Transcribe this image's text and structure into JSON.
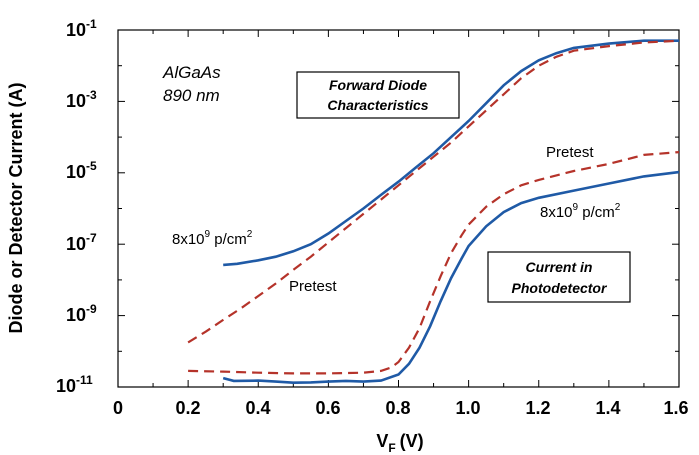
{
  "chart_data": {
    "type": "line",
    "title": "",
    "xlabel": "V",
    "xlabel_sub": "F",
    "xlabel_unit": "(V)",
    "ylabel": "Diode or Detector Current (A)",
    "xlim": [
      0,
      1.6
    ],
    "ylim_log10": [
      -11,
      -1
    ],
    "y_scale": "log",
    "x_ticks": [
      "0",
      "0.2",
      "0.4",
      "0.6",
      "0.8",
      "1.0",
      "1.2",
      "1.4",
      "1.6"
    ],
    "y_ticks": [
      {
        "base": "10",
        "exp": "-1"
      },
      {
        "base": "10",
        "exp": "-3"
      },
      {
        "base": "10",
        "exp": "-5"
      },
      {
        "base": "10",
        "exp": "-7"
      },
      {
        "base": "10",
        "exp": "-9"
      },
      {
        "base": "10",
        "exp": "-11"
      }
    ],
    "grid": false,
    "series": [
      {
        "name": "",
        "color": "#1f5aa6",
        "dash": "solid",
        "points_log10": [
          [
            0.3,
            -7.58
          ],
          [
            0.34,
            -7.55
          ],
          [
            0.4,
            -7.45
          ],
          [
            0.45,
            -7.35
          ],
          [
            0.5,
            -7.2
          ],
          [
            0.55,
            -7.0
          ],
          [
            0.6,
            -6.7
          ],
          [
            0.65,
            -6.35
          ],
          [
            0.7,
            -6.0
          ],
          [
            0.75,
            -5.62
          ],
          [
            0.8,
            -5.25
          ],
          [
            0.85,
            -4.85
          ],
          [
            0.9,
            -4.45
          ],
          [
            0.95,
            -4.0
          ],
          [
            1.0,
            -3.55
          ],
          [
            1.05,
            -3.05
          ],
          [
            1.1,
            -2.55
          ],
          [
            1.15,
            -2.15
          ],
          [
            1.2,
            -1.85
          ],
          [
            1.25,
            -1.65
          ],
          [
            1.3,
            -1.5
          ],
          [
            1.4,
            -1.38
          ],
          [
            1.5,
            -1.3
          ],
          [
            1.6,
            -1.3
          ]
        ]
      },
      {
        "name": "",
        "color": "#b5332a",
        "dash": "dashed",
        "points_log10": [
          [
            0.2,
            -9.75
          ],
          [
            0.25,
            -9.45
          ],
          [
            0.3,
            -9.12
          ],
          [
            0.35,
            -8.8
          ],
          [
            0.4,
            -8.45
          ],
          [
            0.45,
            -8.1
          ],
          [
            0.5,
            -7.72
          ],
          [
            0.55,
            -7.35
          ],
          [
            0.6,
            -6.95
          ],
          [
            0.65,
            -6.55
          ],
          [
            0.7,
            -6.15
          ],
          [
            0.75,
            -5.75
          ],
          [
            0.8,
            -5.35
          ],
          [
            0.85,
            -4.95
          ],
          [
            0.9,
            -4.55
          ],
          [
            0.95,
            -4.15
          ],
          [
            1.0,
            -3.7
          ],
          [
            1.05,
            -3.25
          ],
          [
            1.1,
            -2.8
          ],
          [
            1.15,
            -2.35
          ],
          [
            1.2,
            -2.0
          ],
          [
            1.25,
            -1.75
          ],
          [
            1.3,
            -1.58
          ],
          [
            1.4,
            -1.45
          ],
          [
            1.5,
            -1.35
          ],
          [
            1.6,
            -1.3
          ]
        ]
      },
      {
        "name": "",
        "color": "#b5332a",
        "dash": "dashed",
        "points_log10": [
          [
            0.2,
            -10.55
          ],
          [
            0.3,
            -10.57
          ],
          [
            0.4,
            -10.6
          ],
          [
            0.5,
            -10.62
          ],
          [
            0.6,
            -10.62
          ],
          [
            0.7,
            -10.6
          ],
          [
            0.75,
            -10.55
          ],
          [
            0.78,
            -10.45
          ],
          [
            0.8,
            -10.3
          ],
          [
            0.83,
            -9.9
          ],
          [
            0.86,
            -9.35
          ],
          [
            0.89,
            -8.6
          ],
          [
            0.92,
            -7.9
          ],
          [
            0.95,
            -7.25
          ],
          [
            0.98,
            -6.75
          ],
          [
            1.0,
            -6.45
          ],
          [
            1.05,
            -5.95
          ],
          [
            1.1,
            -5.6
          ],
          [
            1.15,
            -5.35
          ],
          [
            1.2,
            -5.2
          ],
          [
            1.3,
            -4.95
          ],
          [
            1.4,
            -4.75
          ],
          [
            1.5,
            -4.5
          ],
          [
            1.6,
            -4.42
          ]
        ]
      },
      {
        "name": "",
        "color": "#1f5aa6",
        "dash": "solid",
        "points_log10": [
          [
            0.3,
            -10.75
          ],
          [
            0.33,
            -10.83
          ],
          [
            0.4,
            -10.82
          ],
          [
            0.45,
            -10.85
          ],
          [
            0.5,
            -10.88
          ],
          [
            0.55,
            -10.87
          ],
          [
            0.6,
            -10.85
          ],
          [
            0.65,
            -10.83
          ],
          [
            0.7,
            -10.85
          ],
          [
            0.75,
            -10.82
          ],
          [
            0.8,
            -10.65
          ],
          [
            0.83,
            -10.35
          ],
          [
            0.86,
            -9.9
          ],
          [
            0.89,
            -9.3
          ],
          [
            0.92,
            -8.6
          ],
          [
            0.95,
            -7.95
          ],
          [
            0.98,
            -7.4
          ],
          [
            1.0,
            -7.05
          ],
          [
            1.05,
            -6.5
          ],
          [
            1.1,
            -6.1
          ],
          [
            1.15,
            -5.85
          ],
          [
            1.2,
            -5.7
          ],
          [
            1.3,
            -5.5
          ],
          [
            1.4,
            -5.3
          ],
          [
            1.5,
            -5.1
          ],
          [
            1.6,
            -4.98
          ]
        ]
      }
    ],
    "annotations": {
      "material": "AlGaAs",
      "wavelength": "890 nm",
      "box1_line1": "Forward Diode",
      "box1_line2": "Characteristics",
      "box2_line1": "Current in",
      "box2_line2": "Photodetector",
      "fluence_upper_pre": "8x10",
      "fluence_upper_exp": "9",
      "fluence_upper_post": " p/cm",
      "fluence_upper_exp2": "2",
      "fluence_lower_pre": "8x10",
      "fluence_lower_exp": "9",
      "fluence_lower_post": " p/cm",
      "fluence_lower_exp2": "2",
      "pretest_upper": "Pretest",
      "pretest_lower": "Pretest"
    }
  }
}
